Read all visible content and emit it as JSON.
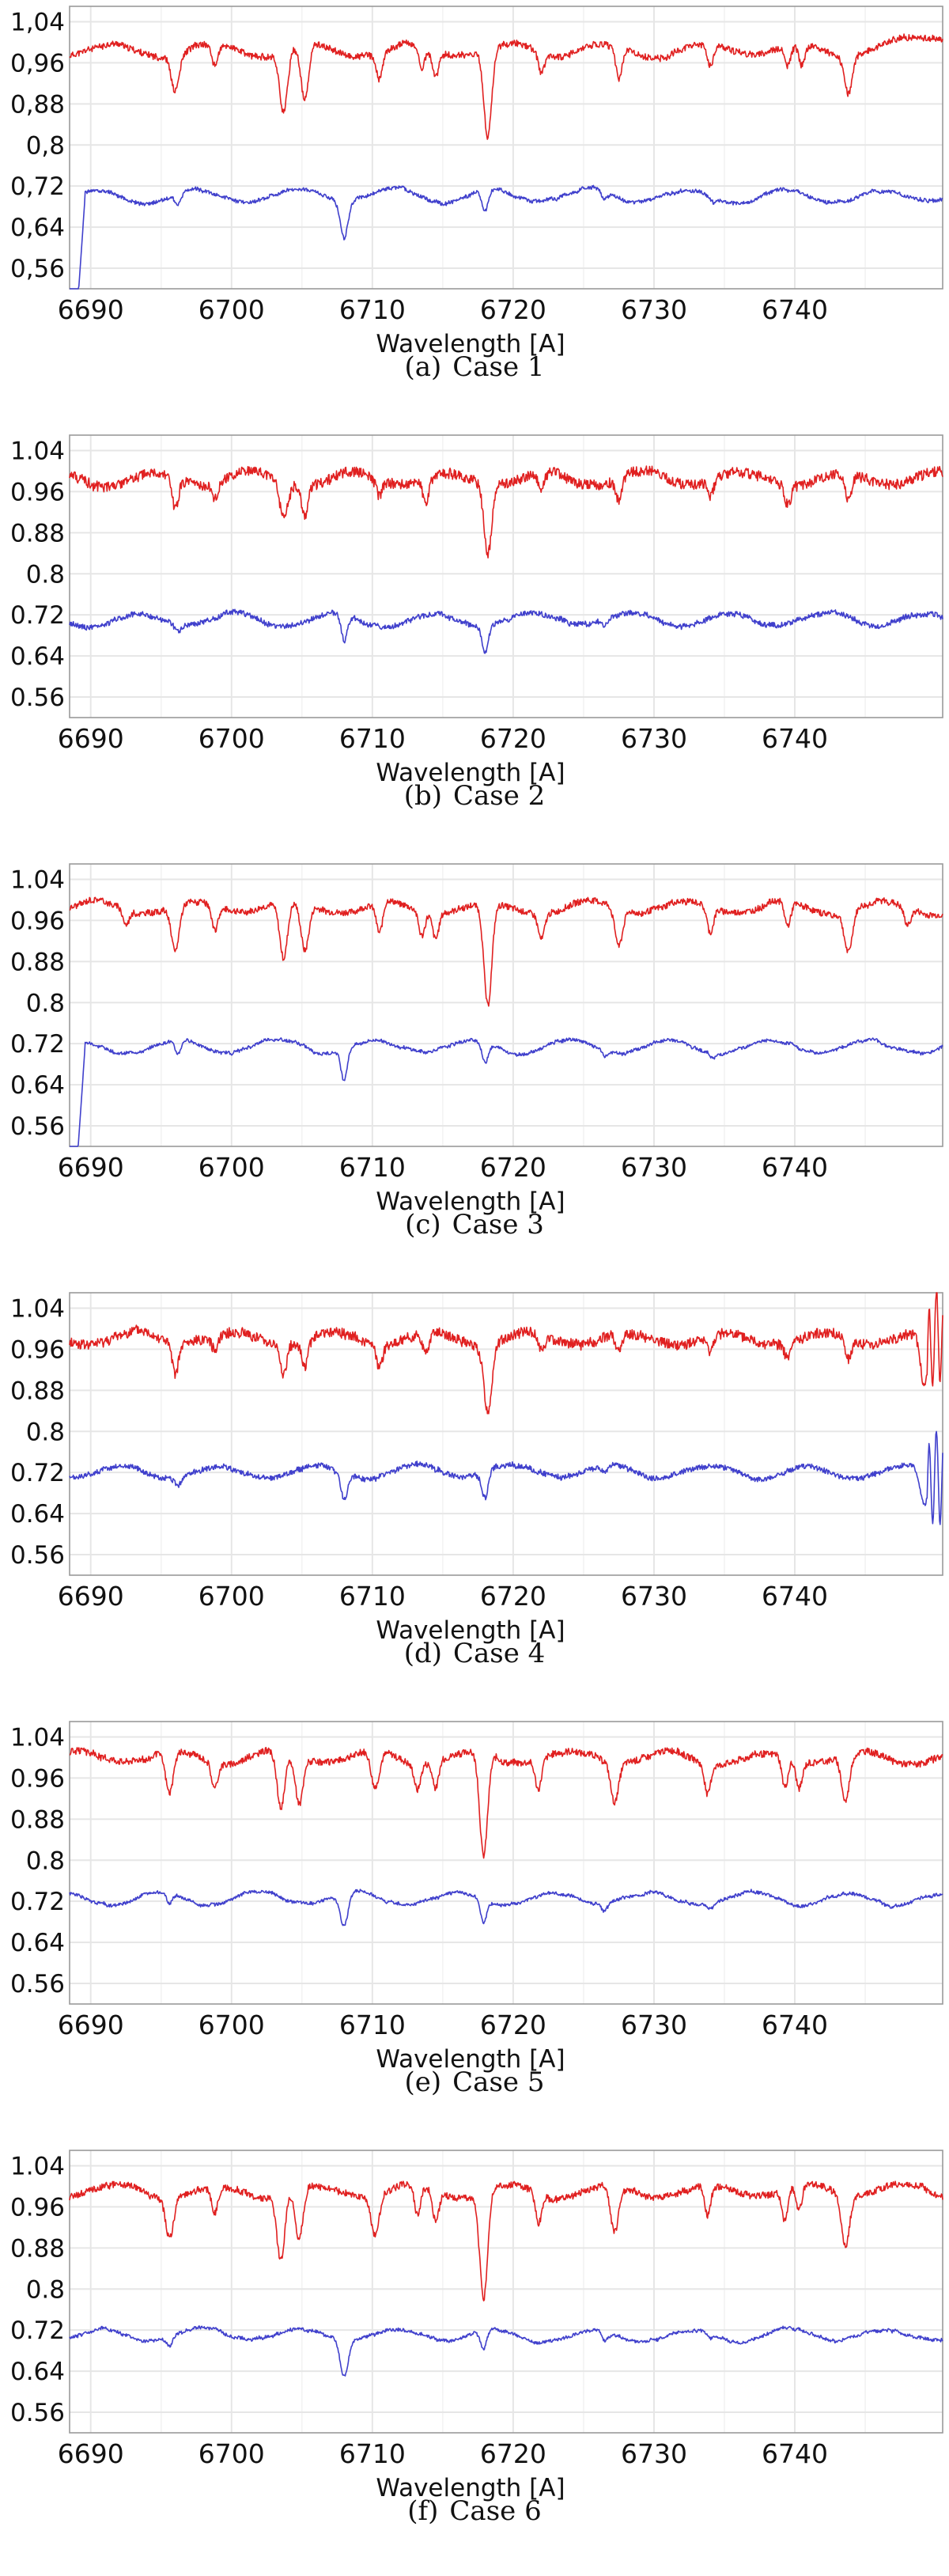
{
  "colors": {
    "upper_series": "#e02020",
    "lower_series": "#4040cc",
    "grid": "#e6e6e6",
    "frame": "#9a9a9a"
  },
  "chart_data": [
    {
      "type": "line",
      "caption_label": "(a)",
      "caption_text": "Case 1",
      "xlabel": "Wavelength [A]",
      "xlim": [
        6688.5,
        6750.5
      ],
      "ylim": [
        0.52,
        1.07
      ],
      "xticks": [
        "6690",
        "6700",
        "6710",
        "6720",
        "6730",
        "6740"
      ],
      "xtick_values": [
        6690,
        6700,
        6710,
        6720,
        6730,
        6740
      ],
      "yticks": [
        "1,04",
        "0,96",
        "0,88",
        "0,8",
        "0,72",
        "0,64",
        "0,56"
      ],
      "ytick_values": [
        1.04,
        0.96,
        0.88,
        0.8,
        0.72,
        0.64,
        0.56
      ],
      "grid": true,
      "series": [
        {
          "baseline": 0.985,
          "noise": 0.012,
          "seed": 11,
          "end_rise": 0.03,
          "lines": [
            [
              6696.0,
              0.07
            ],
            [
              6698.8,
              0.04
            ],
            [
              6703.7,
              0.12
            ],
            [
              6705.2,
              0.11
            ],
            [
              6710.5,
              0.05
            ],
            [
              6713.5,
              0.04
            ],
            [
              6714.5,
              0.05
            ],
            [
              6718.2,
              0.17
            ],
            [
              6722.0,
              0.04
            ],
            [
              6727.5,
              0.06
            ],
            [
              6734.0,
              0.04
            ],
            [
              6739.5,
              0.04
            ],
            [
              6740.5,
              0.04
            ],
            [
              6743.8,
              0.07
            ]
          ]
        },
        {
          "baseline": 0.7,
          "noise": 0.007,
          "seed": 12,
          "start_drop": true,
          "lines": [
            [
              6696.2,
              0.02
            ],
            [
              6708.0,
              0.07
            ],
            [
              6718.0,
              0.04
            ],
            [
              6726.5,
              0.015
            ],
            [
              6734.2,
              0.012
            ]
          ]
        }
      ]
    },
    {
      "type": "line",
      "caption_label": "(b)",
      "caption_text": "Case 2",
      "xlabel": "Wavelength [A]",
      "xlim": [
        6688.5,
        6750.5
      ],
      "ylim": [
        0.52,
        1.07
      ],
      "xticks": [
        "6690",
        "6700",
        "6710",
        "6720",
        "6730",
        "6740"
      ],
      "xtick_values": [
        6690,
        6700,
        6710,
        6720,
        6730,
        6740
      ],
      "yticks": [
        "1.04",
        "0.96",
        "0.88",
        "0.8",
        "0.72",
        "0.64",
        "0.56"
      ],
      "ytick_values": [
        1.04,
        0.96,
        0.88,
        0.8,
        0.72,
        0.64,
        0.56
      ],
      "grid": true,
      "series": [
        {
          "baseline": 0.985,
          "noise": 0.02,
          "seed": 21,
          "lines": [
            [
              6696.0,
              0.06
            ],
            [
              6698.8,
              0.03
            ],
            [
              6703.7,
              0.07
            ],
            [
              6705.2,
              0.06
            ],
            [
              6710.5,
              0.03
            ],
            [
              6713.8,
              0.05
            ],
            [
              6718.2,
              0.14
            ],
            [
              6722.0,
              0.03
            ],
            [
              6727.5,
              0.04
            ],
            [
              6734.0,
              0.03
            ],
            [
              6739.5,
              0.04
            ],
            [
              6743.8,
              0.05
            ]
          ]
        },
        {
          "baseline": 0.71,
          "noise": 0.01,
          "seed": 22,
          "lines": [
            [
              6696.2,
              0.015
            ],
            [
              6708.0,
              0.05
            ],
            [
              6718.0,
              0.05
            ],
            [
              6726.5,
              0.015
            ]
          ]
        }
      ]
    },
    {
      "type": "line",
      "caption_label": "(c)",
      "caption_text": "Case 3",
      "xlabel": "Wavelength [A]",
      "xlim": [
        6688.5,
        6750.5
      ],
      "ylim": [
        0.52,
        1.07
      ],
      "xticks": [
        "6690",
        "6700",
        "6710",
        "6720",
        "6730",
        "6740"
      ],
      "xtick_values": [
        6690,
        6700,
        6710,
        6720,
        6730,
        6740
      ],
      "yticks": [
        "1.04",
        "0.96",
        "0.88",
        "0.8",
        "0.72",
        "0.64",
        "0.56"
      ],
      "ytick_values": [
        1.04,
        0.96,
        0.88,
        0.8,
        0.72,
        0.64,
        0.56
      ],
      "grid": true,
      "series": [
        {
          "baseline": 0.985,
          "noise": 0.012,
          "seed": 31,
          "lines": [
            [
              6692.5,
              0.03
            ],
            [
              6696.0,
              0.09
            ],
            [
              6698.8,
              0.05
            ],
            [
              6703.7,
              0.11
            ],
            [
              6705.2,
              0.09
            ],
            [
              6710.5,
              0.06
            ],
            [
              6713.5,
              0.05
            ],
            [
              6714.5,
              0.05
            ],
            [
              6718.2,
              0.2
            ],
            [
              6722.0,
              0.05
            ],
            [
              6727.5,
              0.07
            ],
            [
              6734.0,
              0.05
            ],
            [
              6739.5,
              0.05
            ],
            [
              6743.8,
              0.08
            ],
            [
              6748.0,
              0.03
            ]
          ]
        },
        {
          "baseline": 0.715,
          "noise": 0.006,
          "seed": 32,
          "start_drop": true,
          "lines": [
            [
              6696.2,
              0.025
            ],
            [
              6708.0,
              0.06
            ],
            [
              6718.0,
              0.04
            ],
            [
              6726.5,
              0.012
            ],
            [
              6734.2,
              0.01
            ]
          ]
        }
      ]
    },
    {
      "type": "line",
      "caption_label": "(d)",
      "caption_text": "Case 4",
      "xlabel": "Wavelength [A]",
      "xlim": [
        6688.5,
        6750.5
      ],
      "ylim": [
        0.52,
        1.07
      ],
      "xticks": [
        "6690",
        "6700",
        "6710",
        "6720",
        "6730",
        "6740"
      ],
      "xtick_values": [
        6690,
        6700,
        6710,
        6720,
        6730,
        6740
      ],
      "yticks": [
        "1.04",
        "0.96",
        "0.88",
        "0.8",
        "0.72",
        "0.64",
        "0.56"
      ],
      "ytick_values": [
        1.04,
        0.96,
        0.88,
        0.8,
        0.72,
        0.64,
        0.56
      ],
      "grid": true,
      "series": [
        {
          "baseline": 0.98,
          "noise": 0.02,
          "seed": 41,
          "end_wiggle": true,
          "lines": [
            [
              6696.0,
              0.06
            ],
            [
              6698.8,
              0.03
            ],
            [
              6703.7,
              0.06
            ],
            [
              6705.2,
              0.05
            ],
            [
              6710.5,
              0.04
            ],
            [
              6713.8,
              0.04
            ],
            [
              6718.2,
              0.13
            ],
            [
              6722.0,
              0.03
            ],
            [
              6727.5,
              0.04
            ],
            [
              6734.0,
              0.03
            ],
            [
              6739.5,
              0.03
            ],
            [
              6743.8,
              0.04
            ],
            [
              6749.2,
              0.1
            ]
          ]
        },
        {
          "baseline": 0.72,
          "noise": 0.01,
          "seed": 42,
          "end_wiggle": true,
          "lines": [
            [
              6696.2,
              0.015
            ],
            [
              6708.0,
              0.05
            ],
            [
              6718.0,
              0.05
            ],
            [
              6726.5,
              0.012
            ],
            [
              6749.2,
              0.07
            ]
          ]
        }
      ]
    },
    {
      "type": "line",
      "caption_label": "(e)",
      "caption_text": "Case 5",
      "xlabel": "Wavelength [A]",
      "xlim": [
        6688.5,
        6750.5
      ],
      "ylim": [
        0.52,
        1.07
      ],
      "xticks": [
        "6690",
        "6700",
        "6710",
        "6720",
        "6730",
        "6740"
      ],
      "xtick_values": [
        6690,
        6700,
        6710,
        6720,
        6730,
        6740
      ],
      "yticks": [
        "1.04",
        "0.96",
        "0.88",
        "0.8",
        "0.72",
        "0.64",
        "0.56"
      ],
      "ytick_values": [
        1.04,
        0.96,
        0.88,
        0.8,
        0.72,
        0.64,
        0.56
      ],
      "grid": true,
      "series": [
        {
          "baseline": 1.0,
          "noise": 0.013,
          "seed": 51,
          "lines": [
            [
              6695.6,
              0.08
            ],
            [
              6698.8,
              0.05
            ],
            [
              6703.5,
              0.11
            ],
            [
              6704.8,
              0.09
            ],
            [
              6710.2,
              0.07
            ],
            [
              6713.2,
              0.05
            ],
            [
              6714.5,
              0.05
            ],
            [
              6717.9,
              0.2
            ],
            [
              6721.8,
              0.06
            ],
            [
              6727.2,
              0.08
            ],
            [
              6733.8,
              0.06
            ],
            [
              6739.3,
              0.06
            ],
            [
              6740.3,
              0.05
            ],
            [
              6743.6,
              0.09
            ]
          ]
        },
        {
          "baseline": 0.725,
          "noise": 0.006,
          "seed": 52,
          "lines": [
            [
              6695.6,
              0.02
            ],
            [
              6708.0,
              0.065
            ],
            [
              6717.9,
              0.045
            ],
            [
              6726.5,
              0.015
            ],
            [
              6734.0,
              0.01
            ]
          ]
        }
      ]
    },
    {
      "type": "line",
      "caption_label": "(f)",
      "caption_text": "Case 6",
      "xlabel": "Wavelength [A]",
      "xlim": [
        6688.5,
        6750.5
      ],
      "ylim": [
        0.52,
        1.07
      ],
      "xticks": [
        "6690",
        "6700",
        "6710",
        "6720",
        "6730",
        "6740"
      ],
      "xtick_values": [
        6690,
        6700,
        6710,
        6720,
        6730,
        6740
      ],
      "yticks": [
        "1.04",
        "0.96",
        "0.88",
        "0.8",
        "0.72",
        "0.64",
        "0.56"
      ],
      "ytick_values": [
        1.04,
        0.96,
        0.88,
        0.8,
        0.72,
        0.64,
        0.56
      ],
      "grid": true,
      "series": [
        {
          "baseline": 0.99,
          "noise": 0.013,
          "seed": 61,
          "lines": [
            [
              6695.6,
              0.08
            ],
            [
              6698.8,
              0.05
            ],
            [
              6703.5,
              0.13
            ],
            [
              6704.8,
              0.1
            ],
            [
              6710.2,
              0.08
            ],
            [
              6713.2,
              0.06
            ],
            [
              6714.5,
              0.06
            ],
            [
              6717.9,
              0.21
            ],
            [
              6721.8,
              0.06
            ],
            [
              6727.2,
              0.09
            ],
            [
              6733.8,
              0.06
            ],
            [
              6739.3,
              0.06
            ],
            [
              6740.3,
              0.05
            ],
            [
              6743.6,
              0.1
            ]
          ]
        },
        {
          "baseline": 0.71,
          "noise": 0.006,
          "seed": 62,
          "lines": [
            [
              6695.6,
              0.02
            ],
            [
              6708.0,
              0.07
            ],
            [
              6717.9,
              0.04
            ],
            [
              6726.5,
              0.015
            ],
            [
              6734.0,
              0.01
            ]
          ]
        }
      ]
    }
  ]
}
